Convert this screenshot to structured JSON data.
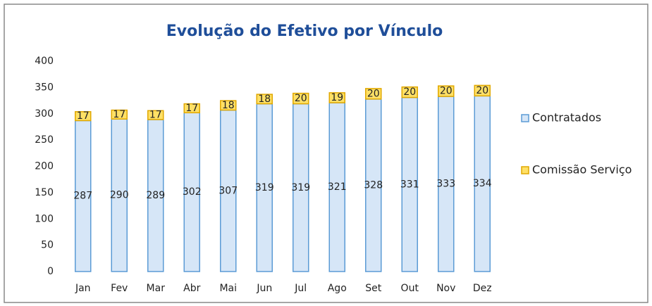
{
  "chart_data": {
    "type": "stacked_bar",
    "title": "Evolução do Efetivo por Vínculo",
    "categories": [
      "Jan",
      "Fev",
      "Mar",
      "Abr",
      "Mai",
      "Jun",
      "Jul",
      "Ago",
      "Set",
      "Out",
      "Nov",
      "Dez"
    ],
    "series": [
      {
        "name": "Contratados",
        "color": "#d6e6f7",
        "values": [
          287,
          290,
          289,
          302,
          307,
          319,
          319,
          321,
          328,
          331,
          333,
          334
        ]
      },
      {
        "name": "Comissão Serviço",
        "color": "#ffe066",
        "values": [
          17,
          17,
          17,
          17,
          18,
          18,
          20,
          19,
          20,
          20,
          20,
          20
        ]
      }
    ],
    "ylim": [
      0,
      400
    ],
    "yticks": [
      0,
      50,
      100,
      150,
      200,
      250,
      300,
      350,
      400
    ],
    "grid": false,
    "legend": "right"
  }
}
